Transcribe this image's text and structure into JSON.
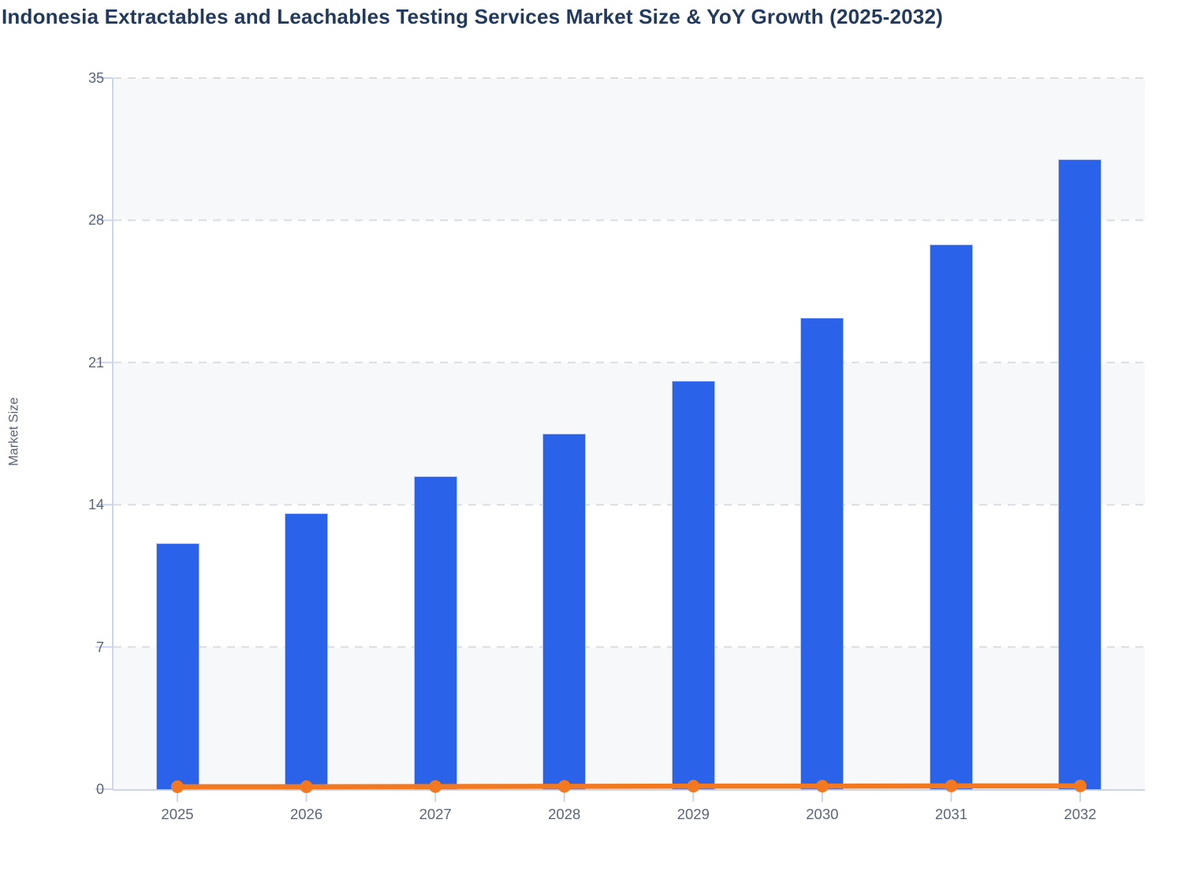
{
  "chart_data": {
    "type": "combo-bar-line",
    "title": "Indonesia Extractables and Leachables Testing Services Market Size & YoY Growth (2025-2032)",
    "ylabel": "Market Size",
    "xlabel": "",
    "categories": [
      "2025",
      "2026",
      "2027",
      "2028",
      "2029",
      "2030",
      "2031",
      "2032"
    ],
    "series": [
      {
        "name": "Market Size",
        "type": "bar",
        "values": [
          12.1,
          13.6,
          15.4,
          17.5,
          20.1,
          23.2,
          26.8,
          31.0
        ]
      },
      {
        "name": "YoY Growth",
        "type": "line",
        "values": [
          0.12,
          0.12,
          0.13,
          0.14,
          0.15,
          0.15,
          0.16,
          0.16
        ]
      }
    ],
    "ylim": [
      0,
      35
    ],
    "yticks": [
      0,
      7,
      14,
      21,
      28,
      35
    ],
    "grid": "horizontal-dashed",
    "plot_bands": "alternating-gray-white-between-gridlines",
    "legend": "none",
    "colors": {
      "bar_fill": "#2a63e9",
      "bar_edge": "#b9c7f3",
      "line": "#f2791f",
      "marker": "#f2791f",
      "band_fill": "#f7f8fa",
      "gridline": "#dadde2",
      "axis_line": "#ccd5ec",
      "title_text": "#223a5e",
      "tick_label_text": "#5b6578",
      "axis_title_text": "#5b6578",
      "background": "#ffffff"
    }
  }
}
